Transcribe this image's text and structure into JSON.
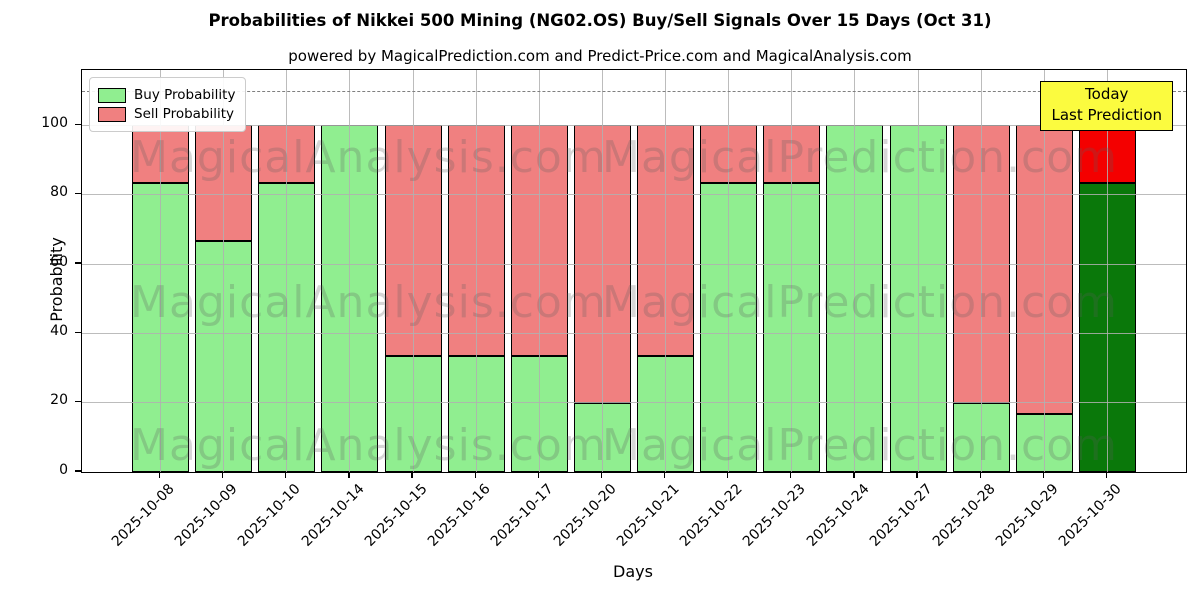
{
  "chart_data": {
    "type": "bar",
    "stacked": true,
    "title": "Probabilities of Nikkei 500 Mining (NG02.OS) Buy/Sell Signals Over 15 Days (Oct 31)",
    "subtitle": "powered by MagicalPrediction.com and Predict-Price.com and MagicalAnalysis.com",
    "xlabel": "Days",
    "ylabel": "Probability",
    "categories": [
      "2025-10-08",
      "2025-10-09",
      "2025-10-10",
      "2025-10-14",
      "2025-10-15",
      "2025-10-16",
      "2025-10-17",
      "2025-10-20",
      "2025-10-21",
      "2025-10-22",
      "2025-10-23",
      "2025-10-24",
      "2025-10-27",
      "2025-10-28",
      "2025-10-29",
      "2025-10-30"
    ],
    "series": [
      {
        "name": "Buy Probability",
        "color": "#90ee90",
        "values": [
          83.33,
          66.67,
          83.33,
          100,
          33.33,
          33.33,
          33.33,
          20,
          33.33,
          83.33,
          83.33,
          100,
          100,
          20,
          16.67,
          83.33
        ]
      },
      {
        "name": "Sell Probability",
        "color": "#f08080",
        "values": [
          16.67,
          33.33,
          16.67,
          0,
          66.67,
          66.67,
          66.67,
          80,
          66.67,
          16.67,
          16.67,
          0,
          0,
          80,
          83.33,
          16.67
        ]
      }
    ],
    "last_bar_highlight": {
      "index": 15,
      "buy_color": "#0a780a",
      "sell_color": "#f40000"
    },
    "yticks": [
      0,
      20,
      40,
      60,
      80,
      100
    ],
    "ylim": [
      0,
      116
    ],
    "dashed_line_y": 110,
    "grid": true,
    "legend_position": "upper left"
  },
  "legend": {
    "items": [
      {
        "label": "Buy Probability",
        "color": "#90ee90"
      },
      {
        "label": "Sell Probability",
        "color": "#f08080"
      }
    ]
  },
  "today_box": {
    "line1": "Today",
    "line2": "Last Prediction",
    "bg_color": "#fbfb3f"
  },
  "watermarks": {
    "left_text": "MagicalAnalysis.com",
    "right_text": "MagicalPrediction.com",
    "rows": 3
  }
}
